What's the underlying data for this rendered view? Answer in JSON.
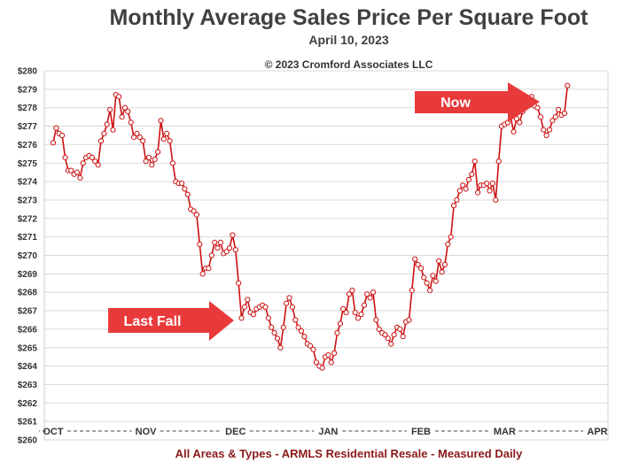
{
  "title": "Monthly Average Sales Price Per Square Foot",
  "subtitle": "April 10, 2023",
  "copyright": "© 2023 Cromford Associates LLC",
  "footer": "All Areas & Types - ARMLS Residential Resale - Measured Daily",
  "colors": {
    "line": "#cc1111",
    "arrow": "#e83a3a",
    "grid": "#d9d9d9",
    "footer": "#8b1a1a"
  },
  "annotations": [
    {
      "id": "last-fall",
      "text": "Last Fall"
    },
    {
      "id": "now",
      "text": "Now"
    }
  ],
  "chart_data": {
    "type": "line",
    "title": "Monthly Average Sales Price Per Square Foot",
    "subtitle": "April 10, 2023",
    "xlabel": "",
    "ylabel": "",
    "x_axis_labels": [
      "OCT",
      "NOV",
      "DEC",
      "JAN",
      "FEB",
      "MAR",
      "APR"
    ],
    "x_axis_dates": [
      "2022-10-01",
      "2022-11-01",
      "2022-12-01",
      "2023-01-01",
      "2023-02-01",
      "2023-03-01",
      "2023-04-01"
    ],
    "ylim": [
      260,
      280
    ],
    "y_ticks": [
      260,
      261,
      262,
      263,
      264,
      265,
      266,
      267,
      268,
      269,
      270,
      271,
      272,
      273,
      274,
      275,
      276,
      277,
      278,
      279,
      280
    ],
    "y_tick_labels": [
      "$260",
      "$261",
      "$262",
      "$263",
      "$264",
      "$265",
      "$266",
      "$267",
      "$268",
      "$269",
      "$270",
      "$271",
      "$272",
      "$273",
      "$274",
      "$275",
      "$276",
      "$277",
      "$278",
      "$279",
      "$280"
    ],
    "grid": "horizontal",
    "series": [
      {
        "values": [
          {
            "x": "2022-10-01",
            "y": 276.1
          },
          {
            "x": "2022-10-02",
            "y": 276.9
          },
          {
            "x": "2022-10-03",
            "y": 276.6
          },
          {
            "x": "2022-10-04",
            "y": 276.5
          },
          {
            "x": "2022-10-05",
            "y": 275.3
          },
          {
            "x": "2022-10-06",
            "y": 274.6
          },
          {
            "x": "2022-10-07",
            "y": 274.6
          },
          {
            "x": "2022-10-08",
            "y": 274.4
          },
          {
            "x": "2022-10-09",
            "y": 274.5
          },
          {
            "x": "2022-10-10",
            "y": 274.2
          },
          {
            "x": "2022-10-11",
            "y": 275.0
          },
          {
            "x": "2022-10-12",
            "y": 275.3
          },
          {
            "x": "2022-10-13",
            "y": 275.4
          },
          {
            "x": "2022-10-14",
            "y": 275.3
          },
          {
            "x": "2022-10-15",
            "y": 275.1
          },
          {
            "x": "2022-10-16",
            "y": 274.9
          },
          {
            "x": "2022-10-17",
            "y": 276.2
          },
          {
            "x": "2022-10-18",
            "y": 276.6
          },
          {
            "x": "2022-10-19",
            "y": 277.1
          },
          {
            "x": "2022-10-20",
            "y": 277.9
          },
          {
            "x": "2022-10-21",
            "y": 276.8
          },
          {
            "x": "2022-10-22",
            "y": 278.7
          },
          {
            "x": "2022-10-23",
            "y": 278.6
          },
          {
            "x": "2022-10-24",
            "y": 277.5
          },
          {
            "x": "2022-10-25",
            "y": 278.0
          },
          {
            "x": "2022-10-26",
            "y": 277.8
          },
          {
            "x": "2022-10-27",
            "y": 277.2
          },
          {
            "x": "2022-10-28",
            "y": 276.4
          },
          {
            "x": "2022-10-29",
            "y": 276.6
          },
          {
            "x": "2022-10-30",
            "y": 276.4
          },
          {
            "x": "2022-10-31",
            "y": 276.2
          },
          {
            "x": "2022-11-01",
            "y": 275.1
          },
          {
            "x": "2022-11-02",
            "y": 275.3
          },
          {
            "x": "2022-11-03",
            "y": 274.9
          },
          {
            "x": "2022-11-04",
            "y": 275.2
          },
          {
            "x": "2022-11-05",
            "y": 275.6
          },
          {
            "x": "2022-11-06",
            "y": 277.3
          },
          {
            "x": "2022-11-07",
            "y": 276.3
          },
          {
            "x": "2022-11-08",
            "y": 276.6
          },
          {
            "x": "2022-11-09",
            "y": 276.2
          },
          {
            "x": "2022-11-10",
            "y": 275.0
          },
          {
            "x": "2022-11-11",
            "y": 274.0
          },
          {
            "x": "2022-11-12",
            "y": 273.9
          },
          {
            "x": "2022-11-13",
            "y": 273.9
          },
          {
            "x": "2022-11-14",
            "y": 273.6
          },
          {
            "x": "2022-11-15",
            "y": 273.3
          },
          {
            "x": "2022-11-16",
            "y": 272.5
          },
          {
            "x": "2022-11-17",
            "y": 272.4
          },
          {
            "x": "2022-11-18",
            "y": 272.2
          },
          {
            "x": "2022-11-19",
            "y": 270.6
          },
          {
            "x": "2022-11-20",
            "y": 269.0
          },
          {
            "x": "2022-11-21",
            "y": 269.3
          },
          {
            "x": "2022-11-22",
            "y": 269.3
          },
          {
            "x": "2022-11-23",
            "y": 270.0
          },
          {
            "x": "2022-11-24",
            "y": 270.7
          },
          {
            "x": "2022-11-25",
            "y": 270.4
          },
          {
            "x": "2022-11-26",
            "y": 270.7
          },
          {
            "x": "2022-11-27",
            "y": 270.1
          },
          {
            "x": "2022-11-28",
            "y": 270.2
          },
          {
            "x": "2022-11-29",
            "y": 270.4
          },
          {
            "x": "2022-11-30",
            "y": 271.1
          },
          {
            "x": "2022-12-01",
            "y": 270.3
          },
          {
            "x": "2022-12-02",
            "y": 268.5
          },
          {
            "x": "2022-12-03",
            "y": 266.6
          },
          {
            "x": "2022-12-04",
            "y": 267.2
          },
          {
            "x": "2022-12-05",
            "y": 267.6
          },
          {
            "x": "2022-12-06",
            "y": 266.9
          },
          {
            "x": "2022-12-07",
            "y": 266.8
          },
          {
            "x": "2022-12-08",
            "y": 267.1
          },
          {
            "x": "2022-12-09",
            "y": 267.2
          },
          {
            "x": "2022-12-10",
            "y": 267.3
          },
          {
            "x": "2022-12-11",
            "y": 267.2
          },
          {
            "x": "2022-12-12",
            "y": 266.6
          },
          {
            "x": "2022-12-13",
            "y": 266.1
          },
          {
            "x": "2022-12-14",
            "y": 265.8
          },
          {
            "x": "2022-12-15",
            "y": 265.5
          },
          {
            "x": "2022-12-16",
            "y": 265.0
          },
          {
            "x": "2022-12-17",
            "y": 266.1
          },
          {
            "x": "2022-12-18",
            "y": 267.4
          },
          {
            "x": "2022-12-19",
            "y": 267.7
          },
          {
            "x": "2022-12-20",
            "y": 267.2
          },
          {
            "x": "2022-12-21",
            "y": 266.5
          },
          {
            "x": "2022-12-22",
            "y": 266.1
          },
          {
            "x": "2022-12-23",
            "y": 265.9
          },
          {
            "x": "2022-12-24",
            "y": 265.6
          },
          {
            "x": "2022-12-25",
            "y": 265.2
          },
          {
            "x": "2022-12-26",
            "y": 265.1
          },
          {
            "x": "2022-12-27",
            "y": 264.9
          },
          {
            "x": "2022-12-28",
            "y": 264.2
          },
          {
            "x": "2022-12-29",
            "y": 264.0
          },
          {
            "x": "2022-12-30",
            "y": 263.9
          },
          {
            "x": "2022-12-31",
            "y": 264.5
          },
          {
            "x": "2023-01-01",
            "y": 264.6
          },
          {
            "x": "2023-01-02",
            "y": 264.2
          },
          {
            "x": "2023-01-03",
            "y": 264.7
          },
          {
            "x": "2023-01-04",
            "y": 265.8
          },
          {
            "x": "2023-01-05",
            "y": 266.3
          },
          {
            "x": "2023-01-06",
            "y": 267.1
          },
          {
            "x": "2023-01-07",
            "y": 266.9
          },
          {
            "x": "2023-01-08",
            "y": 267.9
          },
          {
            "x": "2023-01-09",
            "y": 268.1
          },
          {
            "x": "2023-01-10",
            "y": 266.9
          },
          {
            "x": "2023-01-11",
            "y": 266.6
          },
          {
            "x": "2023-01-12",
            "y": 266.8
          },
          {
            "x": "2023-01-13",
            "y": 267.3
          },
          {
            "x": "2023-01-14",
            "y": 267.9
          },
          {
            "x": "2023-01-15",
            "y": 267.7
          },
          {
            "x": "2023-01-16",
            "y": 268.0
          },
          {
            "x": "2023-01-17",
            "y": 266.5
          },
          {
            "x": "2023-01-18",
            "y": 266.0
          },
          {
            "x": "2023-01-19",
            "y": 265.8
          },
          {
            "x": "2023-01-20",
            "y": 265.7
          },
          {
            "x": "2023-01-21",
            "y": 265.5
          },
          {
            "x": "2023-01-22",
            "y": 265.2
          },
          {
            "x": "2023-01-23",
            "y": 265.7
          },
          {
            "x": "2023-01-24",
            "y": 266.1
          },
          {
            "x": "2023-01-25",
            "y": 266.0
          },
          {
            "x": "2023-01-26",
            "y": 265.6
          },
          {
            "x": "2023-01-27",
            "y": 266.4
          },
          {
            "x": "2023-01-28",
            "y": 266.5
          },
          {
            "x": "2023-01-29",
            "y": 268.1
          },
          {
            "x": "2023-01-30",
            "y": 269.8
          },
          {
            "x": "2023-01-31",
            "y": 269.5
          },
          {
            "x": "2023-02-01",
            "y": 269.3
          },
          {
            "x": "2023-02-02",
            "y": 268.8
          },
          {
            "x": "2023-02-03",
            "y": 268.5
          },
          {
            "x": "2023-02-04",
            "y": 268.1
          },
          {
            "x": "2023-02-05",
            "y": 268.9
          },
          {
            "x": "2023-02-06",
            "y": 268.6
          },
          {
            "x": "2023-02-07",
            "y": 269.7
          },
          {
            "x": "2023-02-08",
            "y": 269.1
          },
          {
            "x": "2023-02-09",
            "y": 269.5
          },
          {
            "x": "2023-02-10",
            "y": 270.6
          },
          {
            "x": "2023-02-11",
            "y": 271.0
          },
          {
            "x": "2023-02-12",
            "y": 272.7
          },
          {
            "x": "2023-02-13",
            "y": 273.0
          },
          {
            "x": "2023-02-14",
            "y": 273.5
          },
          {
            "x": "2023-02-15",
            "y": 273.8
          },
          {
            "x": "2023-02-16",
            "y": 273.6
          },
          {
            "x": "2023-02-17",
            "y": 274.1
          },
          {
            "x": "2023-02-18",
            "y": 274.4
          },
          {
            "x": "2023-02-19",
            "y": 275.1
          },
          {
            "x": "2023-02-20",
            "y": 273.4
          },
          {
            "x": "2023-02-21",
            "y": 273.8
          },
          {
            "x": "2023-02-22",
            "y": 273.8
          },
          {
            "x": "2023-02-23",
            "y": 273.9
          },
          {
            "x": "2023-02-24",
            "y": 273.5
          },
          {
            "x": "2023-02-25",
            "y": 273.9
          },
          {
            "x": "2023-02-26",
            "y": 273.0
          },
          {
            "x": "2023-02-27",
            "y": 275.1
          },
          {
            "x": "2023-02-28",
            "y": 277.0
          },
          {
            "x": "2023-03-01",
            "y": 277.1
          },
          {
            "x": "2023-03-02",
            "y": 277.2
          },
          {
            "x": "2023-03-03",
            "y": 277.5
          },
          {
            "x": "2023-03-04",
            "y": 276.7
          },
          {
            "x": "2023-03-05",
            "y": 277.4
          },
          {
            "x": "2023-03-06",
            "y": 277.2
          },
          {
            "x": "2023-03-07",
            "y": 277.8
          },
          {
            "x": "2023-03-08",
            "y": 278.3
          },
          {
            "x": "2023-03-09",
            "y": 278.5
          },
          {
            "x": "2023-03-10",
            "y": 278.6
          },
          {
            "x": "2023-03-11",
            "y": 278.1
          },
          {
            "x": "2023-03-12",
            "y": 278.0
          },
          {
            "x": "2023-03-13",
            "y": 277.5
          },
          {
            "x": "2023-03-14",
            "y": 276.8
          },
          {
            "x": "2023-03-15",
            "y": 276.5
          },
          {
            "x": "2023-03-16",
            "y": 276.8
          },
          {
            "x": "2023-03-17",
            "y": 277.3
          },
          {
            "x": "2023-03-18",
            "y": 277.5
          },
          {
            "x": "2023-03-19",
            "y": 277.9
          },
          {
            "x": "2023-03-20",
            "y": 277.6
          },
          {
            "x": "2023-03-21",
            "y": 277.7
          },
          {
            "x": "2023-03-22",
            "y": 279.2
          }
        ]
      }
    ]
  }
}
